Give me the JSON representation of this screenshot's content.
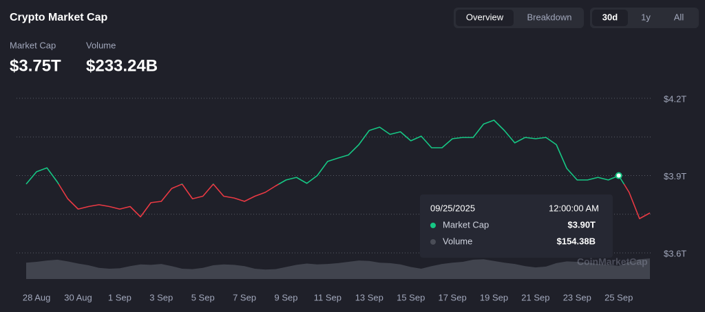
{
  "header": {
    "title": "Crypto Market Cap"
  },
  "controls": {
    "views": [
      "Overview",
      "Breakdown"
    ],
    "ranges": [
      "30d",
      "1y",
      "All"
    ]
  },
  "stats": {
    "market_cap": "$3.75T",
    "volume": "$233.24B"
  },
  "tooltip": {
    "date": "09/25/2025",
    "time": "12:00:00 AM",
    "values": [
      "$3.90T",
      "$154.38B"
    ]
  },
  "watermark": "CoinMarketCap",
  "chart_data": {
    "type": "line",
    "categories": [
      null,
      "28 Aug",
      null,
      null,
      null,
      "30 Aug",
      null,
      null,
      null,
      "1 Sep",
      null,
      null,
      null,
      "3 Sep",
      null,
      null,
      null,
      "5 Sep",
      null,
      null,
      null,
      "7 Sep",
      null,
      null,
      null,
      "9 Sep",
      null,
      null,
      null,
      "11 Sep",
      null,
      null,
      null,
      "13 Sep",
      null,
      null,
      null,
      "15 Sep",
      null,
      null,
      null,
      "17 Sep",
      null,
      null,
      null,
      "19 Sep",
      null,
      null,
      null,
      "21 Sep",
      null,
      null,
      null,
      "23 Sep",
      null,
      null,
      null,
      "25 Sep",
      null,
      null,
      null
    ],
    "series": [
      {
        "name": "Market Cap",
        "up_color": "#16c784",
        "down_color": "#ea3943",
        "values": [
          3.867,
          3.915,
          3.93,
          3.875,
          3.81,
          3.77,
          3.78,
          3.787,
          3.78,
          3.77,
          3.78,
          3.74,
          3.795,
          3.8,
          3.85,
          3.867,
          3.81,
          3.82,
          3.867,
          3.82,
          3.813,
          3.8,
          3.82,
          3.835,
          3.86,
          3.883,
          3.893,
          3.87,
          3.9,
          3.955,
          3.968,
          3.98,
          4.02,
          4.075,
          4.088,
          4.06,
          4.07,
          4.035,
          4.053,
          4.008,
          4.008,
          4.043,
          4.048,
          4.048,
          4.1,
          4.115,
          4.075,
          4.027,
          4.048,
          4.043,
          4.048,
          4.02,
          3.928,
          3.883,
          3.883,
          3.893,
          3.883,
          3.9,
          3.835,
          3.733,
          3.755
        ]
      },
      {
        "name": "Volume",
        "color": "#4a4d57",
        "values": [
          190,
          200,
          215,
          225,
          205,
          180,
          160,
          130,
          120,
          125,
          150,
          170,
          165,
          175,
          150,
          120,
          115,
          130,
          160,
          170,
          165,
          150,
          120,
          110,
          115,
          140,
          165,
          180,
          170,
          175,
          185,
          200,
          215,
          210,
          190,
          185,
          170,
          140,
          120,
          150,
          175,
          190,
          200,
          225,
          230,
          210,
          190,
          175,
          150,
          135,
          145,
          185,
          205,
          200,
          190,
          175,
          165,
          154.38,
          200,
          230,
          240
        ]
      }
    ],
    "ylim": [
      3.6,
      4.2
    ],
    "yticks": [
      {
        "value": 4.2,
        "label": "$4.2T"
      },
      {
        "value": 4.05,
        "label": null
      },
      {
        "value": 3.9,
        "label": "$3.9T"
      },
      {
        "value": 3.75,
        "label": null
      },
      {
        "value": 3.6,
        "label": "$3.6T"
      }
    ],
    "grid": true
  }
}
